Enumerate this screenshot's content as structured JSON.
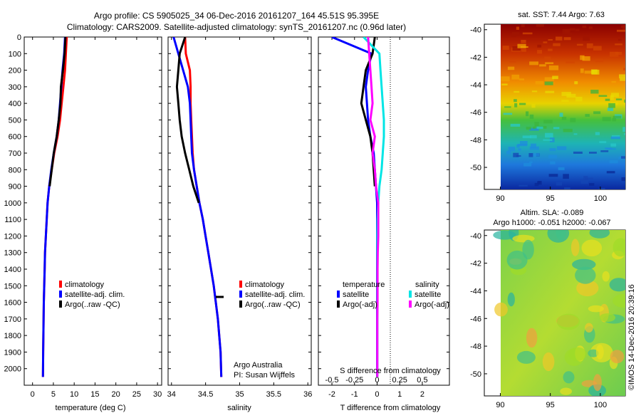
{
  "header": {
    "line1": "Argo profile: CS 5905025_34 06-Dec-2016 20161207_164 45.51S 95.395E",
    "line2": "Climatology: CARS2009. Satellite-adjusted climatology: synTS_20161207.nc (0.96d later)"
  },
  "footer": {
    "stamp": "©IMOS 14-Dec-2016 20:39:16"
  },
  "colors": {
    "climatology": "#ff0000",
    "satellite": "#0000ff",
    "argo": "#000000",
    "satellite_salinity": "#00e5e5",
    "argo_adj_salinity": "#ff00ff"
  },
  "chart_data": [
    {
      "type": "line",
      "xlabel": "temperature (deg C)",
      "xticks": [
        "0",
        "5",
        "10",
        "15",
        "20",
        "25",
        "30"
      ],
      "xlim": [
        -2,
        31
      ],
      "ylim": [
        0,
        2100
      ],
      "y_reversed": true,
      "yticks": [
        "0",
        "100",
        "200",
        "300",
        "400",
        "500",
        "600",
        "700",
        "800",
        "900",
        "1000",
        "1100",
        "1200",
        "1300",
        "1400",
        "1500",
        "1600",
        "1700",
        "1800",
        "1900",
        "2000"
      ],
      "legend": [
        "climatology",
        "satellite-adj. clim.",
        "Argo(..raw -QC)"
      ],
      "series": [
        {
          "name": "climatology",
          "color": "#ff0000",
          "x": [
            8.2,
            8.0,
            7.8,
            7.4,
            7.0,
            6.6,
            6.0,
            5.2,
            4.6,
            4.0,
            3.6,
            3.4,
            3.2,
            3.0,
            2.9,
            2.8,
            2.7,
            2.65,
            2.6,
            2.55,
            2.5
          ],
          "y": [
            0,
            100,
            200,
            300,
            400,
            500,
            600,
            700,
            800,
            900,
            1000,
            1100,
            1200,
            1300,
            1400,
            1500,
            1600,
            1700,
            1800,
            1900,
            2050
          ]
        },
        {
          "name": "satellite-adj. clim.",
          "color": "#0000ff",
          "x": [
            7.8,
            7.6,
            7.2,
            6.9,
            6.6,
            6.3,
            5.8,
            5.1,
            4.5,
            4.0,
            3.6,
            3.4,
            3.2,
            3.0,
            2.9,
            2.8,
            2.7,
            2.65,
            2.6,
            2.55,
            2.5
          ],
          "y": [
            0,
            100,
            200,
            300,
            400,
            500,
            600,
            700,
            800,
            900,
            1000,
            1100,
            1200,
            1300,
            1400,
            1500,
            1600,
            1700,
            1800,
            1900,
            2050
          ]
        },
        {
          "name": "Argo(..raw -QC)",
          "color": "#000000",
          "x": [
            7.9,
            7.7,
            7.3,
            6.8,
            6.7,
            6.3,
            5.8,
            5.1,
            4.6,
            4.1
          ],
          "y": [
            0,
            100,
            200,
            300,
            400,
            500,
            600,
            700,
            800,
            900
          ]
        }
      ]
    },
    {
      "type": "line",
      "xlabel": "salinity",
      "xticks": [
        "34",
        "34.5",
        "35",
        "35.5",
        "36"
      ],
      "xlim": [
        33.95,
        36.05
      ],
      "ylim": [
        0,
        2100
      ],
      "y_reversed": true,
      "legend": [
        "climatology",
        "satellite-adj. clim.",
        "Argo(..raw -QC)"
      ],
      "annotations": [
        "Argo Australia",
        "PI: Susan Wijffels"
      ],
      "series": [
        {
          "name": "climatology",
          "color": "#ff0000",
          "x": [
            34.2,
            34.21,
            34.27,
            34.28,
            34.28,
            34.29,
            34.3,
            34.31,
            34.33,
            34.37,
            34.41,
            34.46,
            34.5,
            34.54,
            34.58,
            34.62,
            34.65,
            34.68,
            34.7,
            34.72,
            34.73
          ],
          "y": [
            0,
            100,
            200,
            300,
            400,
            500,
            600,
            700,
            800,
            900,
            1000,
            1100,
            1200,
            1300,
            1400,
            1500,
            1600,
            1700,
            1800,
            1900,
            2050
          ]
        },
        {
          "name": "satellite-adj. clim.",
          "color": "#0000ff",
          "x": [
            34.03,
            34.1,
            34.17,
            34.24,
            34.27,
            34.28,
            34.29,
            34.3,
            34.33,
            34.37,
            34.41,
            34.46,
            34.5,
            34.54,
            34.58,
            34.62,
            34.65,
            34.68,
            34.7,
            34.72,
            34.73
          ],
          "y": [
            0,
            100,
            200,
            300,
            400,
            500,
            600,
            700,
            800,
            900,
            1000,
            1100,
            1200,
            1300,
            1400,
            1500,
            1600,
            1700,
            1800,
            1900,
            2050
          ]
        },
        {
          "name": "Argo(..raw -QC)",
          "color": "#000000",
          "x": [
            34.2,
            34.12,
            34.1,
            34.08,
            34.1,
            34.12,
            34.15,
            34.2,
            34.26,
            34.32,
            34.4
          ],
          "y": [
            0,
            100,
            200,
            300,
            400,
            500,
            600,
            700,
            800,
            900,
            1000
          ]
        }
      ]
    },
    {
      "type": "line",
      "xlabel": "T difference from climatology",
      "top_label": "S difference from climatology",
      "xticks": [
        "-2",
        "-1",
        "0",
        "1",
        "2"
      ],
      "xticks_top": [
        "-0.5",
        "-0.25",
        "0",
        "0.25",
        "0.5"
      ],
      "xlim": [
        -2.6,
        3.2
      ],
      "ylim": [
        0,
        2100
      ],
      "y_reversed": true,
      "legend_groups": [
        {
          "title": "temperature",
          "items": [
            "satellite",
            "Argo(-adj)"
          ]
        },
        {
          "title": "salinity",
          "items": [
            "satellite",
            "Argo(-adj)"
          ]
        }
      ],
      "series": [
        {
          "name": "temperature satellite",
          "color": "#0000ff",
          "x": [
            -2.0,
            -0.25,
            -0.4,
            -0.5,
            -0.45,
            -0.4,
            -0.3,
            -0.15,
            -0.1,
            -0.05,
            0,
            0,
            0,
            0,
            0,
            0,
            0,
            0,
            0,
            0,
            0
          ],
          "y": [
            0,
            100,
            200,
            300,
            400,
            500,
            600,
            700,
            800,
            900,
            1000,
            1100,
            1200,
            1300,
            1400,
            1500,
            1600,
            1700,
            1800,
            1900,
            2050
          ]
        },
        {
          "name": "temperature Argo(-adj)",
          "color": "#000000",
          "x": [
            -0.1,
            -0.2,
            -0.5,
            -0.6,
            -0.7,
            -0.5,
            -0.3,
            -0.2,
            -0.15,
            -0.1
          ],
          "y": [
            0,
            100,
            200,
            300,
            400,
            500,
            600,
            700,
            800,
            900
          ]
        },
        {
          "name": "salinity satellite",
          "color": "#00e5e5",
          "x": [
            -0.6,
            0.1,
            0.15,
            0.2,
            0.25,
            0.3,
            0.3,
            0.25,
            0.2,
            0.1,
            0.05,
            0.02,
            0.01,
            0.01,
            0.01,
            0.01,
            0.01,
            0.01,
            0.01,
            0.01,
            0.01
          ],
          "y": [
            0,
            100,
            200,
            300,
            400,
            500,
            600,
            700,
            800,
            900,
            1000,
            1100,
            1200,
            1300,
            1400,
            1500,
            1600,
            1700,
            1800,
            1900,
            2050
          ]
        },
        {
          "name": "salinity Argo(-adj)",
          "color": "#ff00ff",
          "x": [
            -0.4,
            -0.35,
            -0.3,
            -0.25,
            -0.2,
            -0.3,
            -0.1,
            -0.2,
            -0.1,
            -0.05,
            0.05,
            0.05,
            0.05,
            0.03,
            0.02,
            0.02,
            0.02,
            0.01,
            0.01,
            0.01,
            0.01
          ],
          "y": [
            0,
            100,
            200,
            300,
            400,
            500,
            600,
            700,
            800,
            900,
            1000,
            1100,
            1200,
            1300,
            1400,
            1500,
            1600,
            1700,
            1800,
            1900,
            2050
          ]
        }
      ]
    },
    {
      "type": "heatmap",
      "title": "sat. SST: 7.44  Argo: 7.63",
      "xticks": [
        "90",
        "95",
        "100"
      ],
      "yticks": [
        "-40",
        "-42",
        "-44",
        "-46",
        "-48",
        "-50"
      ],
      "xlim": [
        88.4,
        102.5
      ],
      "ylim": [
        -51.6,
        -39.6
      ],
      "colormap": "jet"
    },
    {
      "type": "heatmap",
      "title_line1": "Altim. SLA: -0.089",
      "title_line2": "Argo h1000: -0.051 h2000: -0.067",
      "xticks": [
        "90",
        "95",
        "100"
      ],
      "yticks": [
        "-40",
        "-42",
        "-44",
        "-46",
        "-48",
        "-50"
      ],
      "xlim": [
        88.4,
        102.5
      ],
      "ylim": [
        -51.6,
        -39.6
      ],
      "colormap": "jet"
    }
  ]
}
